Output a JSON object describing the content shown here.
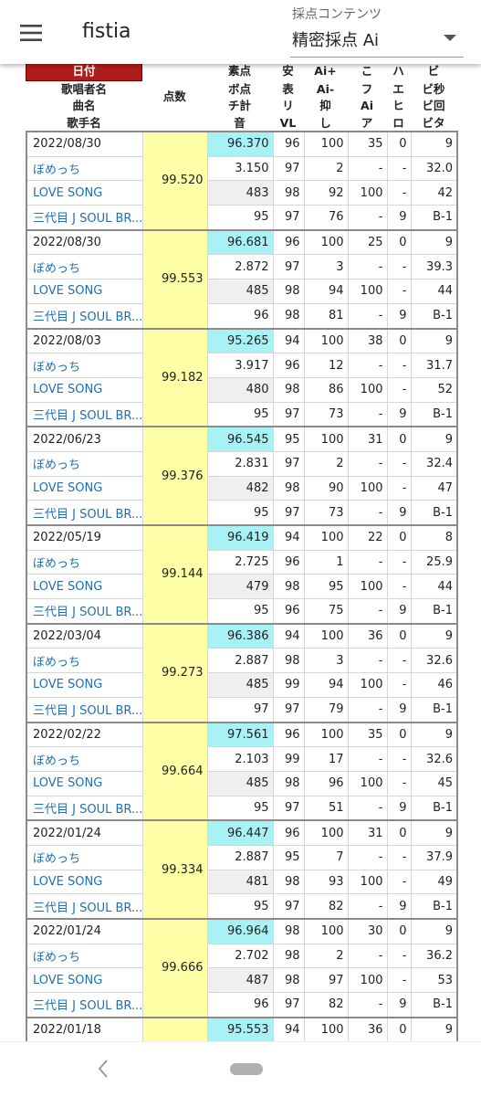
{
  "app_bar": {
    "title": "fistia",
    "content_label": "採点コンテンツ",
    "content_value": "精密採点 Ai"
  },
  "table": {
    "headers": [
      [
        "日付",
        "歌唱者名",
        "曲名",
        "歌手名"
      ],
      [
        "点数"
      ],
      [
        "素点",
        "ボ点",
        "チ計",
        "音"
      ],
      [
        "安",
        "表",
        "リ",
        "VL"
      ],
      [
        "Ai+",
        "Ai-",
        "抑",
        "し"
      ],
      [
        "こ",
        "フ",
        "Ai",
        "ア"
      ],
      [
        "ハ",
        "エ",
        "ヒ",
        "ロ"
      ],
      [
        "ビ",
        "ビ秒",
        "ビ回",
        "ビタ"
      ]
    ],
    "records": [
      {
        "date": "2022/08/30",
        "singer": "ぼめっち",
        "song": "LOVE SONG",
        "artist": "三代目 J SOUL BR...",
        "score": "99.520",
        "cells": [
          [
            "96.370",
            "96",
            "100",
            "35",
            "0",
            "9"
          ],
          [
            "3.150",
            "97",
            "2",
            "-",
            "-",
            "32.0"
          ],
          [
            "483",
            "98",
            "92",
            "100",
            "-",
            "42"
          ],
          [
            "95",
            "97",
            "76",
            "-",
            "9",
            "B-1"
          ]
        ]
      },
      {
        "date": "2022/08/30",
        "singer": "ぼめっち",
        "song": "LOVE SONG",
        "artist": "三代目 J SOUL BR...",
        "score": "99.553",
        "cells": [
          [
            "96.681",
            "96",
            "100",
            "25",
            "0",
            "9"
          ],
          [
            "2.872",
            "97",
            "3",
            "-",
            "-",
            "39.3"
          ],
          [
            "485",
            "98",
            "94",
            "100",
            "-",
            "44"
          ],
          [
            "96",
            "98",
            "81",
            "-",
            "9",
            "B-1"
          ]
        ]
      },
      {
        "date": "2022/08/03",
        "singer": "ぼめっち",
        "song": "LOVE SONG",
        "artist": "三代目 J SOUL BR...",
        "score": "99.182",
        "cells": [
          [
            "95.265",
            "94",
            "100",
            "38",
            "0",
            "9"
          ],
          [
            "3.917",
            "96",
            "12",
            "-",
            "-",
            "31.7"
          ],
          [
            "480",
            "98",
            "86",
            "100",
            "-",
            "52"
          ],
          [
            "95",
            "97",
            "73",
            "-",
            "9",
            "B-1"
          ]
        ]
      },
      {
        "date": "2022/06/23",
        "singer": "ぼめっち",
        "song": "LOVE SONG",
        "artist": "三代目 J SOUL BR...",
        "score": "99.376",
        "cells": [
          [
            "96.545",
            "95",
            "100",
            "31",
            "0",
            "9"
          ],
          [
            "2.831",
            "97",
            "2",
            "-",
            "-",
            "32.4"
          ],
          [
            "482",
            "98",
            "90",
            "100",
            "-",
            "47"
          ],
          [
            "95",
            "97",
            "73",
            "-",
            "9",
            "B-1"
          ]
        ]
      },
      {
        "date": "2022/05/19",
        "singer": "ぼめっち",
        "song": "LOVE SONG",
        "artist": "三代目 J SOUL BR...",
        "score": "99.144",
        "cells": [
          [
            "96.419",
            "94",
            "100",
            "22",
            "0",
            "8"
          ],
          [
            "2.725",
            "96",
            "1",
            "-",
            "-",
            "25.9"
          ],
          [
            "479",
            "98",
            "95",
            "100",
            "-",
            "44"
          ],
          [
            "95",
            "96",
            "75",
            "-",
            "9",
            "B-1"
          ]
        ]
      },
      {
        "date": "2022/03/04",
        "singer": "ぼめっち",
        "song": "LOVE SONG",
        "artist": "三代目 J SOUL BR...",
        "score": "99.273",
        "cells": [
          [
            "96.386",
            "94",
            "100",
            "36",
            "0",
            "9"
          ],
          [
            "2.887",
            "98",
            "3",
            "-",
            "-",
            "32.6"
          ],
          [
            "485",
            "99",
            "94",
            "100",
            "-",
            "46"
          ],
          [
            "97",
            "97",
            "79",
            "-",
            "9",
            "B-1"
          ]
        ]
      },
      {
        "date": "2022/02/22",
        "singer": "ぼめっち",
        "song": "LOVE SONG",
        "artist": "三代目 J SOUL BR...",
        "score": "99.664",
        "cells": [
          [
            "97.561",
            "96",
            "100",
            "35",
            "0",
            "9"
          ],
          [
            "2.103",
            "99",
            "17",
            "-",
            "-",
            "32.6"
          ],
          [
            "485",
            "98",
            "96",
            "100",
            "-",
            "45"
          ],
          [
            "95",
            "97",
            "51",
            "-",
            "9",
            "B-1"
          ]
        ]
      },
      {
        "date": "2022/01/24",
        "singer": "ぼめっち",
        "song": "LOVE SONG",
        "artist": "三代目 J SOUL BR...",
        "score": "99.334",
        "cells": [
          [
            "96.447",
            "96",
            "100",
            "31",
            "0",
            "9"
          ],
          [
            "2.887",
            "95",
            "7",
            "-",
            "-",
            "37.9"
          ],
          [
            "481",
            "98",
            "93",
            "100",
            "-",
            "49"
          ],
          [
            "95",
            "97",
            "82",
            "-",
            "9",
            "B-1"
          ]
        ]
      },
      {
        "date": "2022/01/24",
        "singer": "ぼめっち",
        "song": "LOVE SONG",
        "artist": "三代目 J SOUL BR...",
        "score": "99.666",
        "cells": [
          [
            "96.964",
            "98",
            "100",
            "30",
            "0",
            "9"
          ],
          [
            "2.702",
            "98",
            "2",
            "-",
            "-",
            "36.2"
          ],
          [
            "487",
            "98",
            "97",
            "100",
            "-",
            "53"
          ],
          [
            "96",
            "97",
            "82",
            "-",
            "9",
            "B-1"
          ]
        ]
      },
      {
        "date": "2022/01/18",
        "cells": [
          [
            "95.553",
            "94",
            "100",
            "36",
            "0",
            "9"
          ]
        ]
      }
    ]
  }
}
